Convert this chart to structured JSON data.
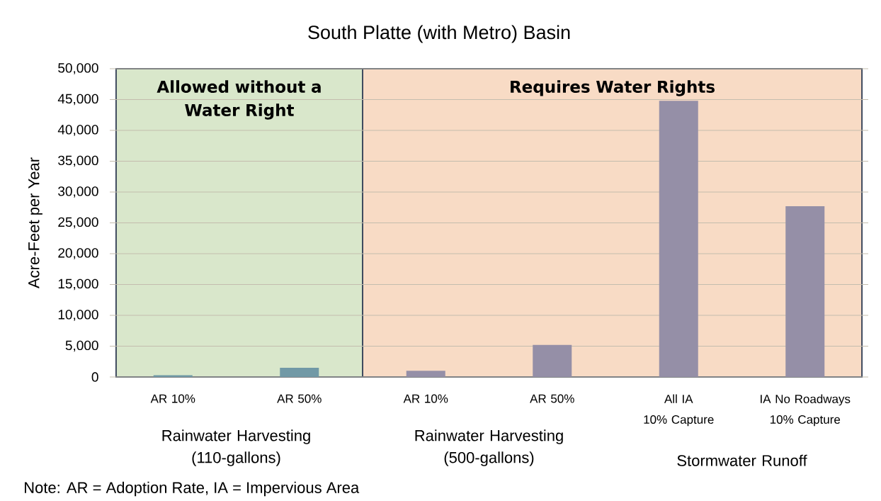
{
  "chart_data": {
    "type": "bar",
    "title": "South Platte (with Metro) Basin",
    "ylabel": "Acre-Feet per Year",
    "categories": [
      "AR 10%",
      "AR 50%",
      "AR 10%",
      "AR 50%",
      "All IA\n10% Capture",
      "IA No Roadways\n10% Capture"
    ],
    "values": [
      300,
      1500,
      1000,
      5200,
      44800,
      27700
    ],
    "colors": [
      "#7199a6",
      "#7199a6",
      "#958fa7",
      "#958fa7",
      "#958fa7",
      "#958fa7"
    ],
    "ylim": [
      0,
      50000
    ],
    "yticks": [
      0,
      {
        "value": 5000,
        "label": "5,000"
      },
      {
        "value": 10000,
        "label": "10,000"
      },
      {
        "value": 15000,
        "label": "15,000"
      },
      {
        "value": 20000,
        "label": "20,000"
      },
      {
        "value": 25000,
        "label": "25,000"
      },
      {
        "value": 30000,
        "label": "30,000"
      },
      {
        "value": 35000,
        "label": "35,000"
      },
      {
        "value": 40000,
        "label": "40,000"
      },
      {
        "value": 45000,
        "label": "45,000"
      },
      {
        "value": 50000,
        "label": "50,000"
      }
    ],
    "grid": "y",
    "bands": [
      {
        "axis": "x",
        "from": "AR 10%",
        "to": "AR 50%",
        "label": "Allowed without a\nWater Right",
        "color": "#d9e7cb"
      }
    ],
    "annotations": [
      "Requires Water Rights",
      "Rainwater Harvesting\n(110-gallons)",
      "Rainwater Harvesting\n(500-gallons)",
      "Stormwater Runoff",
      "Note: AR = Adoption Rate, IA = Impervious Area"
    ]
  }
}
